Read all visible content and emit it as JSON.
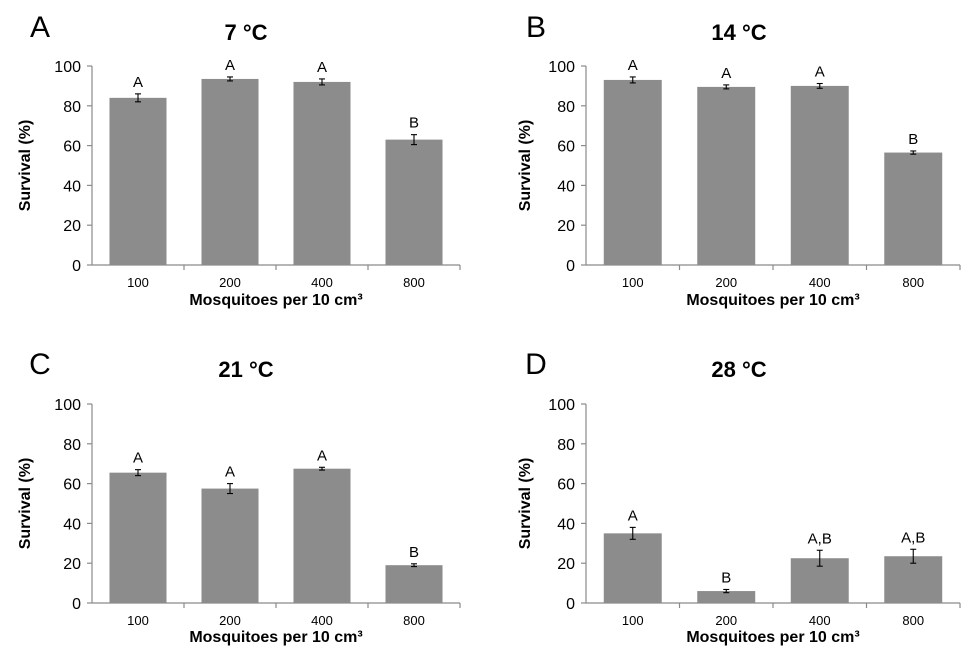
{
  "chart_data": [
    {
      "type": "bar",
      "panel": "A",
      "title": "7 °C",
      "xlabel": "Mosquitoes per 10 cm³",
      "ylabel": "Survival (%)",
      "ylim": [
        0,
        100
      ],
      "yticks": [
        "0",
        "20",
        "40",
        "60",
        "80",
        "100"
      ],
      "categories": [
        "100",
        "200",
        "400",
        "800"
      ],
      "values": [
        84,
        93.5,
        92,
        63
      ],
      "errors": [
        2,
        1,
        1.5,
        2.5
      ],
      "letters": [
        "A",
        "A",
        "A",
        "B"
      ]
    },
    {
      "type": "bar",
      "panel": "B",
      "title": "14 °C",
      "xlabel": "Mosquitoes per 10 cm³",
      "ylabel": "Survival (%)",
      "ylim": [
        0,
        100
      ],
      "yticks": [
        "0",
        "20",
        "40",
        "60",
        "80",
        "100"
      ],
      "categories": [
        "100",
        "200",
        "400",
        "800"
      ],
      "values": [
        93,
        89.5,
        90,
        56.5
      ],
      "errors": [
        1.5,
        1,
        1.2,
        0.8
      ],
      "letters": [
        "A",
        "A",
        "A",
        "B"
      ]
    },
    {
      "type": "bar",
      "panel": "C",
      "title": "21 °C",
      "xlabel": "Mosquitoes per 10 cm³",
      "ylabel": "Survival (%)",
      "ylim": [
        0,
        100
      ],
      "yticks": [
        "0",
        "20",
        "40",
        "60",
        "80",
        "100"
      ],
      "categories": [
        "100",
        "200",
        "400",
        "800"
      ],
      "values": [
        65.5,
        57.5,
        67.5,
        19
      ],
      "errors": [
        1.5,
        2.5,
        0.7,
        0.7
      ],
      "letters": [
        "A",
        "A",
        "A",
        "B"
      ]
    },
    {
      "type": "bar",
      "panel": "D",
      "title": "28 °C",
      "xlabel": "Mosquitoes per 10 cm³",
      "ylabel": "Survival (%)",
      "ylim": [
        0,
        100
      ],
      "yticks": [
        "0",
        "20",
        "40",
        "60",
        "80",
        "100"
      ],
      "categories": [
        "100",
        "200",
        "400",
        "800"
      ],
      "values": [
        35,
        6,
        22.5,
        23.5
      ],
      "errors": [
        3,
        0.8,
        4,
        3.5
      ],
      "letters": [
        "A",
        "B",
        "A,B",
        "A,B"
      ]
    }
  ],
  "colors": {
    "bar": "#8c8c8c",
    "axis": "#8a8a8a",
    "text": "#000000"
  }
}
